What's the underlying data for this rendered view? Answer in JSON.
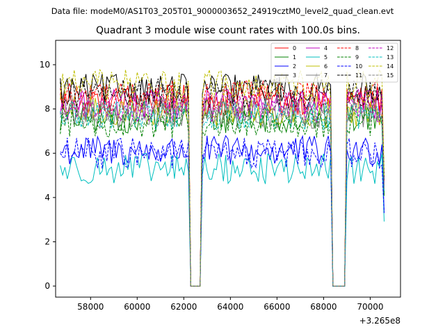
{
  "suptitle": "Data file: modeM0/AS1T03_205T01_9000003652_24919cztM0_level2_quad_clean.evt",
  "chart_data": {
    "type": "line",
    "title": "Quadrant 3 module wise count rates with 100.0s bins.",
    "xlabel": "",
    "ylabel": "",
    "x_offset_label": "+3.265e8",
    "xlim": [
      56500,
      71300
    ],
    "ylim": [
      -0.5,
      11.1
    ],
    "xticks": [
      58000,
      60000,
      62000,
      64000,
      66000,
      68000,
      70000
    ],
    "xtick_labels": [
      "58000",
      "60000",
      "62000",
      "64000",
      "66000",
      "68000",
      "70000"
    ],
    "yticks": [
      0,
      2,
      4,
      6,
      8,
      10
    ],
    "ytick_labels": [
      "0",
      "2",
      "4",
      "6",
      "8",
      "10"
    ],
    "x_start": 56700,
    "x_step": 100,
    "gaps": [
      [
        62300,
        62700
      ],
      [
        68400,
        68900
      ]
    ],
    "legend_position": "top-right",
    "legend_columns": 4,
    "series": [
      {
        "name": "0",
        "color": "#ff0000",
        "dash": "solid",
        "level": 8.4
      },
      {
        "name": "1",
        "color": "#008000",
        "dash": "solid",
        "level": 7.6
      },
      {
        "name": "2",
        "color": "#0000ff",
        "dash": "solid",
        "level": 6.1
      },
      {
        "name": "3",
        "color": "#000000",
        "dash": "solid",
        "level": 8.9
      },
      {
        "name": "4",
        "color": "#bf00bf",
        "dash": "solid",
        "level": 8.2
      },
      {
        "name": "5",
        "color": "#00bfbf",
        "dash": "solid",
        "level": 5.3
      },
      {
        "name": "6",
        "color": "#bfbf00",
        "dash": "solid",
        "level": 7.9
      },
      {
        "name": "7",
        "color": "#808080",
        "dash": "solid",
        "level": 7.8
      },
      {
        "name": "8",
        "color": "#ff0000",
        "dash": "dashed",
        "level": 8.6
      },
      {
        "name": "9",
        "color": "#008000",
        "dash": "dashed",
        "level": 7.4
      },
      {
        "name": "10",
        "color": "#0000ff",
        "dash": "dashed",
        "level": 6.0
      },
      {
        "name": "11",
        "color": "#000000",
        "dash": "dashed",
        "level": 8.7
      },
      {
        "name": "12",
        "color": "#bf00bf",
        "dash": "dashed",
        "level": 8.1
      },
      {
        "name": "13",
        "color": "#00bfbf",
        "dash": "dashed",
        "level": 7.7
      },
      {
        "name": "14",
        "color": "#bfbf00",
        "dash": "dashed",
        "level": 9.1
      },
      {
        "name": "15",
        "color": "#808080",
        "dash": "dashed",
        "level": 7.9
      }
    ]
  }
}
